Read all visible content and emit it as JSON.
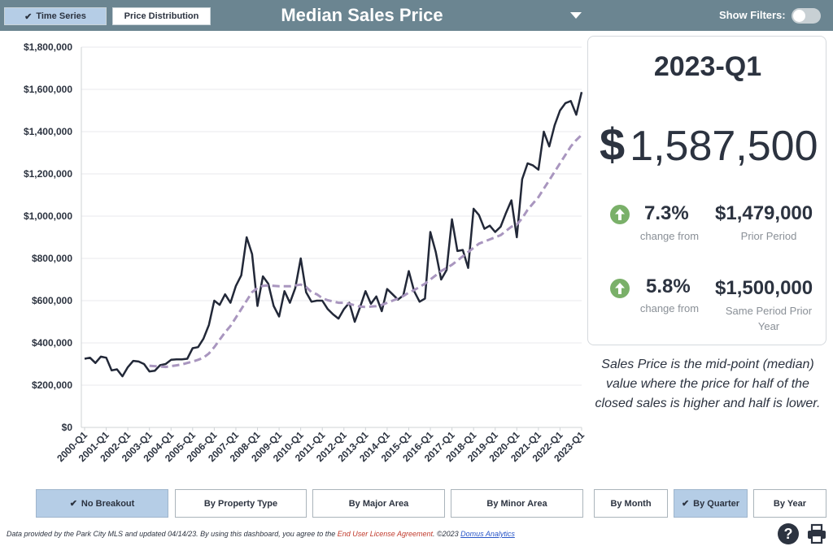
{
  "header": {
    "tab_time_series": "Time Series",
    "tab_price_distribution": "Price Distribution",
    "title": "Median Sales Price",
    "show_filters_label": "Show Filters:"
  },
  "summary": {
    "period": "2023-Q1",
    "value": "1,587,500",
    "currency_symbol": "$",
    "change1_pct": "7.3%",
    "change1_label": "change from",
    "change1_value": "$1,479,000",
    "change1_value_label": "Prior Period",
    "change2_pct": "5.8%",
    "change2_label": "change from",
    "change2_value": "$1,500,000",
    "change2_value_label": "Same Period Prior Year",
    "positive_color": "#7ab069"
  },
  "description": "Sales Price is the mid-point (median) value where the price for half of the closed sales is higher and half is lower.",
  "breakout_buttons": {
    "no_breakout": "No Breakout",
    "by_property_type": "By Property Type",
    "by_major_area": "By Major Area",
    "by_minor_area": "By Minor Area",
    "by_month": "By Month",
    "by_quarter": "By Quarter",
    "by_year": "By Year"
  },
  "footer": {
    "text1": "Data provided by the Park City MLS and updated 04/14/23.  By using this dashboard, you agree to the ",
    "license": "End User License Agreement",
    "text2": ".  ©2023 ",
    "brand": "Domus Analytics"
  },
  "chart_data": {
    "type": "line",
    "y_tick_labels": [
      "$0",
      "$200,000",
      "$400,000",
      "$600,000",
      "$800,000",
      "$1,000,000",
      "$1,200,000",
      "$1,400,000",
      "$1,600,000",
      "$1,800,000"
    ],
    "ylim": [
      0,
      1800000
    ],
    "x_tick_labels": [
      "2000-Q1",
      "2001-Q1",
      "2002-Q1",
      "2003-Q1",
      "2004-Q1",
      "2005-Q1",
      "2006-Q1",
      "2007-Q1",
      "2008-Q1",
      "2009-Q1",
      "2010-Q1",
      "2011-Q1",
      "2012-Q1",
      "2013-Q1",
      "2014-Q1",
      "2015-Q1",
      "2016-Q1",
      "2017-Q1",
      "2018-Q1",
      "2019-Q1",
      "2020-Q1",
      "2021-Q1",
      "2022-Q1",
      "2023-Q1"
    ],
    "grid": true,
    "series": [
      {
        "style": "solid",
        "color": "#222838",
        "values": [
          325000,
          330000,
          305000,
          335000,
          330000,
          270000,
          275000,
          242000,
          285000,
          315000,
          312000,
          300000,
          265000,
          268000,
          295000,
          300000,
          320000,
          322000,
          322000,
          325000,
          375000,
          380000,
          420000,
          485000,
          600000,
          580000,
          630000,
          590000,
          670000,
          720000,
          900000,
          820000,
          575000,
          715000,
          680000,
          575000,
          525000,
          645000,
          590000,
          660000,
          800000,
          640000,
          595000,
          600000,
          600000,
          560000,
          535000,
          515000,
          560000,
          590000,
          500000,
          570000,
          645000,
          585000,
          620000,
          550000,
          655000,
          630000,
          605000,
          625000,
          740000,
          645000,
          595000,
          610000,
          925000,
          830000,
          700000,
          745000,
          985000,
          835000,
          840000,
          755000,
          1035000,
          1005000,
          940000,
          955000,
          925000,
          950000,
          1015000,
          1075000,
          900000,
          1175000,
          1250000,
          1240000,
          1220000,
          1400000,
          1330000,
          1430000,
          1500000,
          1535000,
          1545000,
          1480000,
          1587500
        ]
      },
      {
        "style": "dashed",
        "color": "#a996bf",
        "values": [
          null,
          null,
          null,
          null,
          null,
          null,
          null,
          null,
          null,
          null,
          null,
          null,
          292000,
          290000,
          288000,
          286000,
          290000,
          294000,
          298000,
          305000,
          312000,
          320000,
          330000,
          350000,
          380000,
          415000,
          450000,
          480000,
          520000,
          560000,
          600000,
          640000,
          660000,
          670000,
          672000,
          670000,
          668000,
          668000,
          668000,
          672000,
          676000,
          665000,
          640000,
          630000,
          612000,
          602000,
          596000,
          590000,
          590000,
          585000,
          578000,
          572000,
          570000,
          572000,
          574000,
          580000,
          590000,
          600000,
          610000,
          622000,
          638000,
          650000,
          665000,
          680000,
          700000,
          720000,
          740000,
          755000,
          770000,
          790000,
          810000,
          830000,
          850000,
          870000,
          880000,
          890000,
          900000,
          910000,
          930000,
          950000,
          960000,
          990000,
          1030000,
          1060000,
          1090000,
          1130000,
          1170000,
          1210000,
          1250000,
          1290000,
          1330000,
          1360000,
          1385000
        ]
      }
    ]
  }
}
